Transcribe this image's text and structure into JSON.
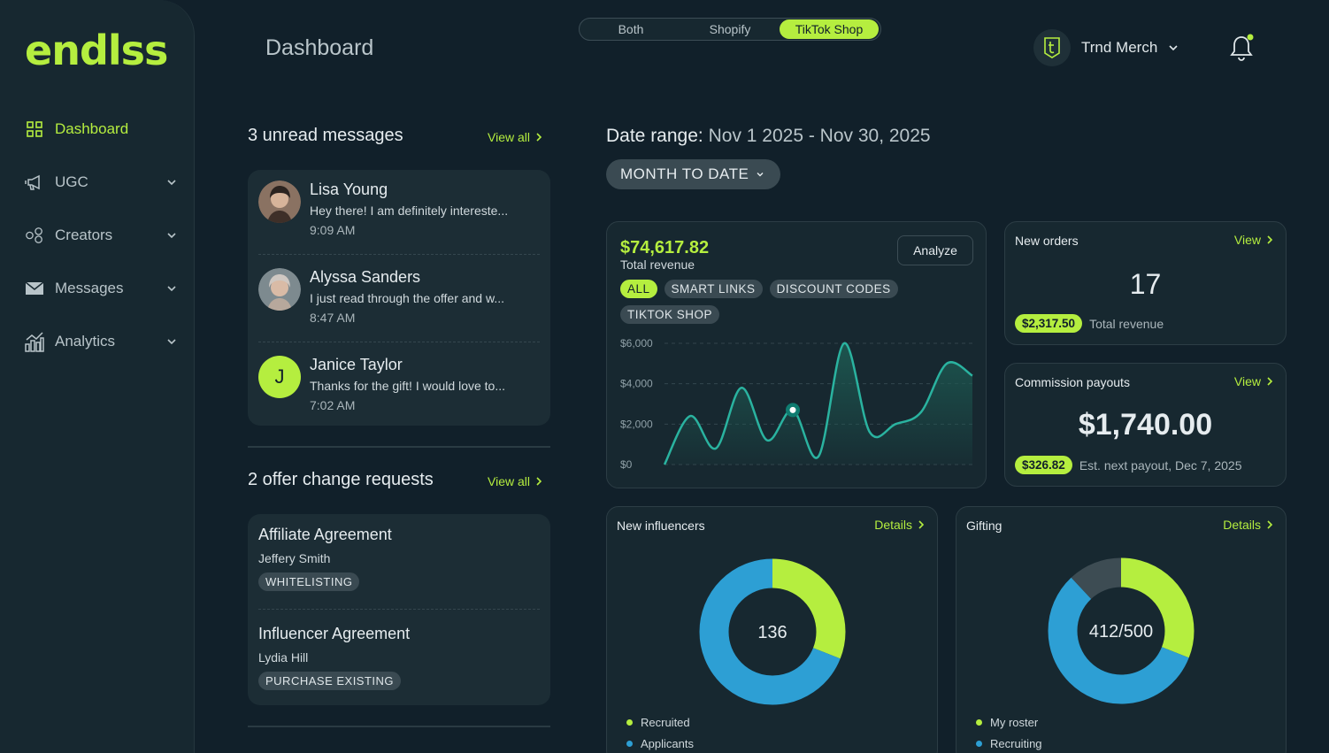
{
  "brand": {
    "logo": "endlss",
    "accent": "#b5ee3f"
  },
  "sidebar": {
    "items": [
      {
        "label": "Dashboard",
        "icon": "grid-icon",
        "active": true
      },
      {
        "label": "UGC",
        "icon": "megaphone-icon"
      },
      {
        "label": "Creators",
        "icon": "people-icon"
      },
      {
        "label": "Messages",
        "icon": "envelope-icon"
      },
      {
        "label": "Analytics",
        "icon": "bar-chart-icon"
      }
    ]
  },
  "header": {
    "title": "Dashboard",
    "segments": [
      "Both",
      "Shopify",
      "TikTok Shop"
    ],
    "active_segment": "TikTok Shop",
    "account_name": "Trnd Merch"
  },
  "messages": {
    "title": "3 unread messages",
    "view_all": "View all",
    "items": [
      {
        "name": "Lisa Young",
        "text": "Hey there! I am definitely intereste...",
        "time": "9:09 AM"
      },
      {
        "name": "Alyssa Sanders",
        "text": "I just read through the offer and w...",
        "time": "8:47 AM"
      },
      {
        "name": "Janice Taylor",
        "text": "Thanks for the gift! I would love to...",
        "time": "7:02 AM",
        "initial": "J"
      }
    ]
  },
  "offers": {
    "title": "2 offer change requests",
    "view_all": "View all",
    "items": [
      {
        "title": "Affiliate Agreement",
        "name": "Jeffery Smith",
        "tag": "WHITELISTING"
      },
      {
        "title": "Influencer Agreement",
        "name": "Lydia Hill",
        "tag": "PURCHASE EXISTING"
      }
    ]
  },
  "date_range": {
    "label": "Date range:",
    "value": "Nov 1 2025 - Nov 30, 2025",
    "preset": "MONTH TO DATE"
  },
  "revenue": {
    "value": "$74,617.82",
    "label": "Total revenue",
    "analyze": "Analyze",
    "filters": [
      "ALL",
      "SMART LINKS",
      "DISCOUNT CODES",
      "TIKTOK SHOP"
    ],
    "active_filter": "ALL"
  },
  "new_orders": {
    "title": "New orders",
    "link": "View",
    "count": "17",
    "revenue": "$2,317.50",
    "revenue_label": "Total revenue"
  },
  "commission": {
    "title": "Commission payouts",
    "link": "View",
    "amount": "$1,740.00",
    "next": "$326.82",
    "next_label": "Est. next payout, Dec 7, 2025"
  },
  "influencers": {
    "title": "New influencers",
    "link": "Details",
    "center": "136",
    "legend": [
      "Recruited",
      "Applicants"
    ]
  },
  "gifting": {
    "title": "Gifting",
    "link": "Details",
    "center": "412/500",
    "legend": [
      "My roster",
      "Recruiting"
    ]
  },
  "chart_data": [
    {
      "type": "area",
      "title": "",
      "ylabel": "",
      "y_ticks": [
        "$6,000",
        "$4,000",
        "$2,000",
        "$0"
      ],
      "ylim": [
        0,
        6000
      ],
      "x": [
        1,
        2,
        3,
        4,
        5,
        6,
        7,
        8,
        9,
        10,
        11,
        12,
        13
      ],
      "values": [
        0,
        2400,
        800,
        3800,
        1200,
        2700,
        400,
        6000,
        1600,
        2000,
        2600,
        5000,
        4400
      ],
      "highlight_index": 5,
      "grid": true,
      "colors": {
        "line": "#2ab3a0",
        "fill": "#1d5a52"
      }
    },
    {
      "type": "pie",
      "title": "New influencers",
      "total": 136,
      "series": [
        {
          "name": "Recruited",
          "value": 0.31,
          "color": "#b5ee3f"
        },
        {
          "name": "Applicants",
          "value": 0.69,
          "color": "#2d9fd4"
        }
      ]
    },
    {
      "type": "pie",
      "title": "Gifting",
      "total": "412/500",
      "series": [
        {
          "name": "My roster",
          "value": 0.31,
          "color": "#b5ee3f"
        },
        {
          "name": "Recruiting",
          "value": 0.57,
          "color": "#2d9fd4"
        },
        {
          "name": "",
          "value": 0.12,
          "color": "#3d4c53"
        }
      ]
    }
  ]
}
